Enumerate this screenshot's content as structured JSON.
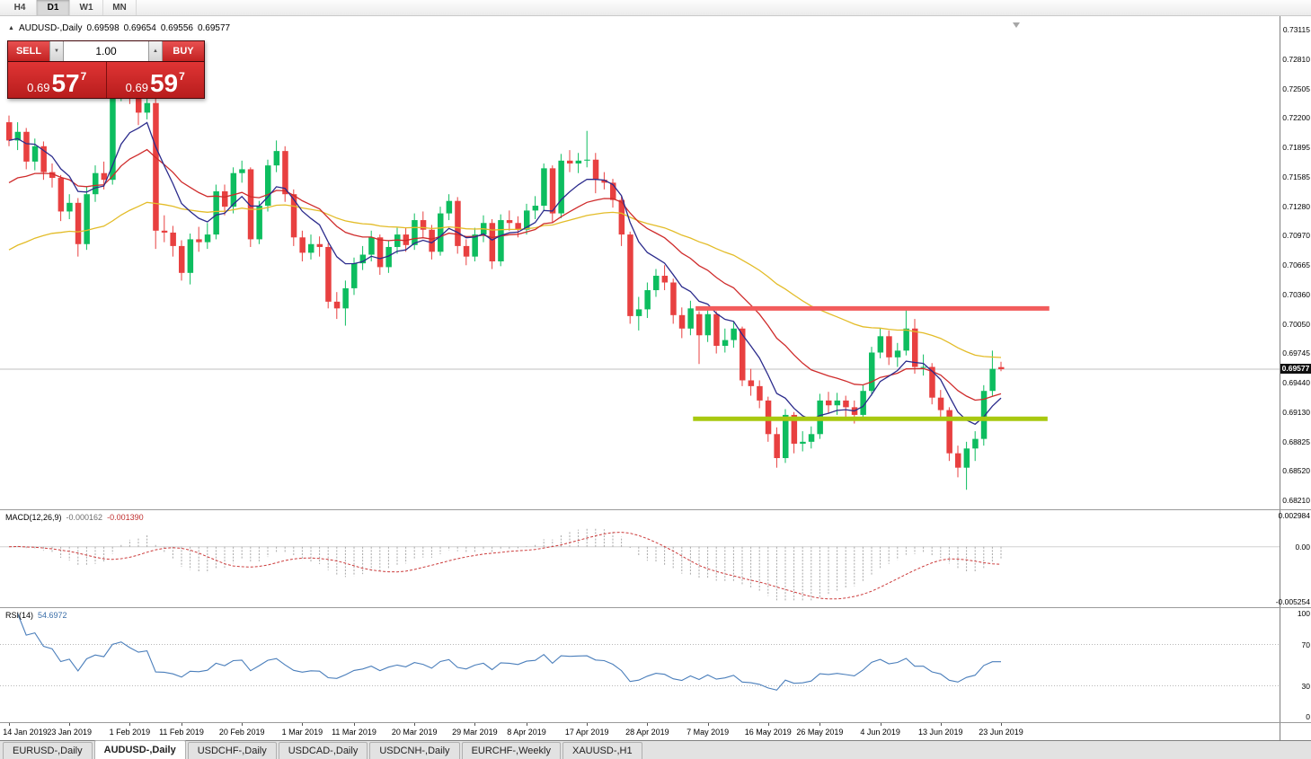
{
  "toolbar": {
    "timeframes": [
      {
        "label": "H4",
        "active": false
      },
      {
        "label": "D1",
        "active": true
      },
      {
        "label": "W1",
        "active": false
      },
      {
        "label": "MN",
        "active": false
      }
    ]
  },
  "window": {
    "symbol_title": "AUDUSD-,Daily",
    "ohlc": {
      "open": "0.69598",
      "high": "0.69654",
      "low": "0.69556",
      "close": "0.69577"
    }
  },
  "icons": {
    "symbol_arrow": "▲",
    "volume_up": "▲",
    "volume_down": "▼"
  },
  "one_click": {
    "sell_label": "SELL",
    "buy_label": "BUY",
    "volume": "1.00",
    "sell_price": {
      "prefix": "0.69",
      "big": "57",
      "sup": "7"
    },
    "buy_price": {
      "prefix": "0.69",
      "big": "59",
      "sup": "7"
    }
  },
  "chart_data": {
    "type": "candlestick",
    "symbol": "AUDUSD",
    "timeframe": "Daily",
    "price_axis": {
      "top_value": 0.73115,
      "bottom_value": 0.6821,
      "labels": [
        "0.73115",
        "0.72810",
        "0.72505",
        "0.72200",
        "0.71895",
        "0.71585",
        "0.71280",
        "0.70970",
        "0.70665",
        "0.70360",
        "0.70050",
        "0.69745",
        "0.69440",
        "0.69130",
        "0.68825",
        "0.68520",
        "0.68210"
      ]
    },
    "current_price": {
      "label": "0.69577",
      "value": 0.69577
    },
    "time_axis": [
      {
        "label": "14 Jan 2019",
        "index": 0
      },
      {
        "label": "23 Jan 2019",
        "index": 7
      },
      {
        "label": "1 Feb 2019",
        "index": 14
      },
      {
        "label": "11 Feb 2019",
        "index": 20
      },
      {
        "label": "20 Feb 2019",
        "index": 27
      },
      {
        "label": "1 Mar 2019",
        "index": 34
      },
      {
        "label": "11 Mar 2019",
        "index": 40
      },
      {
        "label": "20 Mar 2019",
        "index": 47
      },
      {
        "label": "29 Mar 2019",
        "index": 54
      },
      {
        "label": "8 Apr 2019",
        "index": 60
      },
      {
        "label": "17 Apr 2019",
        "index": 67
      },
      {
        "label": "28 Apr 2019",
        "index": 74
      },
      {
        "label": "7 May 2019",
        "index": 81
      },
      {
        "label": "16 May 2019",
        "index": 88
      },
      {
        "label": "26 May 2019",
        "index": 94
      },
      {
        "label": "4 Jun 2019",
        "index": 101
      },
      {
        "label": "13 Jun 2019",
        "index": 108
      },
      {
        "label": "23 Jun 2019",
        "index": 115
      }
    ],
    "candles": [
      [
        0.7215,
        0.7222,
        0.719,
        0.7196
      ],
      [
        0.7196,
        0.7215,
        0.7186,
        0.7205
      ],
      [
        0.7205,
        0.7209,
        0.7166,
        0.7174
      ],
      [
        0.7174,
        0.7198,
        0.7165,
        0.719
      ],
      [
        0.719,
        0.7195,
        0.7155,
        0.7163
      ],
      [
        0.7163,
        0.7172,
        0.7147,
        0.7157
      ],
      [
        0.7157,
        0.716,
        0.7112,
        0.7122
      ],
      [
        0.7122,
        0.714,
        0.7114,
        0.7131
      ],
      [
        0.7131,
        0.7136,
        0.7075,
        0.7088
      ],
      [
        0.7088,
        0.7148,
        0.7082,
        0.714
      ],
      [
        0.714,
        0.717,
        0.7132,
        0.7162
      ],
      [
        0.7162,
        0.7174,
        0.7145,
        0.7155
      ],
      [
        0.7155,
        0.7252,
        0.715,
        0.7245
      ],
      [
        0.7245,
        0.7295,
        0.7237,
        0.727
      ],
      [
        0.727,
        0.7278,
        0.7234,
        0.7246
      ],
      [
        0.7246,
        0.7253,
        0.7212,
        0.7225
      ],
      [
        0.7225,
        0.7248,
        0.7218,
        0.7235
      ],
      [
        0.7235,
        0.724,
        0.7083,
        0.7102
      ],
      [
        0.7102,
        0.7118,
        0.709,
        0.71
      ],
      [
        0.71,
        0.7107,
        0.7075,
        0.7086
      ],
      [
        0.7086,
        0.7092,
        0.705,
        0.7058
      ],
      [
        0.7058,
        0.7099,
        0.7046,
        0.7093
      ],
      [
        0.7093,
        0.7106,
        0.708,
        0.709
      ],
      [
        0.709,
        0.711,
        0.7083,
        0.7098
      ],
      [
        0.7098,
        0.715,
        0.7093,
        0.7143
      ],
      [
        0.7143,
        0.715,
        0.7118,
        0.7127
      ],
      [
        0.7127,
        0.7168,
        0.712,
        0.7162
      ],
      [
        0.7162,
        0.7175,
        0.7152,
        0.7166
      ],
      [
        0.7166,
        0.7168,
        0.7085,
        0.7093
      ],
      [
        0.7093,
        0.7133,
        0.7088,
        0.7128
      ],
      [
        0.7128,
        0.7176,
        0.7122,
        0.717
      ],
      [
        0.717,
        0.7196,
        0.7163,
        0.7185
      ],
      [
        0.7185,
        0.719,
        0.7132,
        0.714
      ],
      [
        0.714,
        0.7145,
        0.7086,
        0.7095
      ],
      [
        0.7095,
        0.7102,
        0.707,
        0.7079
      ],
      [
        0.7079,
        0.7098,
        0.7072,
        0.7088
      ],
      [
        0.7088,
        0.7096,
        0.7075,
        0.7085
      ],
      [
        0.7085,
        0.7089,
        0.7021,
        0.7028
      ],
      [
        0.7028,
        0.7038,
        0.701,
        0.7021
      ],
      [
        0.7021,
        0.705,
        0.7003,
        0.7042
      ],
      [
        0.7042,
        0.7074,
        0.7035,
        0.7068
      ],
      [
        0.7068,
        0.7086,
        0.7061,
        0.7077
      ],
      [
        0.7077,
        0.7102,
        0.707,
        0.7095
      ],
      [
        0.7095,
        0.7098,
        0.7056,
        0.7064
      ],
      [
        0.7064,
        0.7092,
        0.7058,
        0.7085
      ],
      [
        0.7085,
        0.7105,
        0.7078,
        0.7098
      ],
      [
        0.7098,
        0.7105,
        0.708,
        0.7087
      ],
      [
        0.7087,
        0.712,
        0.7082,
        0.7113
      ],
      [
        0.7113,
        0.7122,
        0.7095,
        0.7103
      ],
      [
        0.7103,
        0.7108,
        0.7072,
        0.708
      ],
      [
        0.708,
        0.7127,
        0.7076,
        0.712
      ],
      [
        0.712,
        0.714,
        0.7113,
        0.7133
      ],
      [
        0.7133,
        0.7137,
        0.7078,
        0.7086
      ],
      [
        0.7086,
        0.7093,
        0.7066,
        0.7075
      ],
      [
        0.7075,
        0.7105,
        0.707,
        0.7098
      ],
      [
        0.7098,
        0.7118,
        0.709,
        0.711
      ],
      [
        0.711,
        0.7114,
        0.7062,
        0.707
      ],
      [
        0.707,
        0.7119,
        0.7065,
        0.7113
      ],
      [
        0.7113,
        0.7123,
        0.7102,
        0.711
      ],
      [
        0.711,
        0.7117,
        0.7095,
        0.7103
      ],
      [
        0.7103,
        0.713,
        0.7098,
        0.7123
      ],
      [
        0.7123,
        0.7138,
        0.7114,
        0.7128
      ],
      [
        0.7128,
        0.7172,
        0.7123,
        0.7167
      ],
      [
        0.7167,
        0.717,
        0.711,
        0.712
      ],
      [
        0.712,
        0.7182,
        0.7115,
        0.7175
      ],
      [
        0.7175,
        0.7186,
        0.7163,
        0.7172
      ],
      [
        0.7172,
        0.7183,
        0.7162,
        0.7175
      ],
      [
        0.7175,
        0.7206,
        0.7168,
        0.7176
      ],
      [
        0.7176,
        0.7183,
        0.7141,
        0.7155
      ],
      [
        0.7155,
        0.7163,
        0.7145,
        0.7152
      ],
      [
        0.7152,
        0.7156,
        0.7126,
        0.7134
      ],
      [
        0.7134,
        0.7138,
        0.7086,
        0.7098
      ],
      [
        0.7098,
        0.7101,
        0.7005,
        0.7013
      ],
      [
        0.7013,
        0.7033,
        0.6998,
        0.702
      ],
      [
        0.702,
        0.7048,
        0.7011,
        0.704
      ],
      [
        0.704,
        0.7062,
        0.7033,
        0.7055
      ],
      [
        0.7055,
        0.7066,
        0.704,
        0.7048
      ],
      [
        0.7048,
        0.7052,
        0.7005,
        0.7014
      ],
      [
        0.7014,
        0.7022,
        0.699,
        0.7
      ],
      [
        0.7,
        0.7029,
        0.6993,
        0.7021
      ],
      [
        0.7015,
        0.7018,
        0.6963,
        0.6993
      ],
      [
        0.6993,
        0.7022,
        0.6986,
        0.7015
      ],
      [
        0.7015,
        0.7018,
        0.6974,
        0.6982
      ],
      [
        0.6982,
        0.7,
        0.6975,
        0.6988
      ],
      [
        0.6988,
        0.7007,
        0.698,
        0.7
      ],
      [
        0.7,
        0.7002,
        0.694,
        0.6946
      ],
      [
        0.6946,
        0.6958,
        0.693,
        0.694
      ],
      [
        0.694,
        0.6946,
        0.6917,
        0.6925
      ],
      [
        0.6925,
        0.6929,
        0.6882,
        0.689
      ],
      [
        0.689,
        0.6897,
        0.6855,
        0.6865
      ],
      [
        0.6865,
        0.6916,
        0.686,
        0.691
      ],
      [
        0.691,
        0.6913,
        0.687,
        0.688
      ],
      [
        0.688,
        0.6893,
        0.6872,
        0.6882
      ],
      [
        0.6882,
        0.6898,
        0.6875,
        0.689
      ],
      [
        0.689,
        0.6932,
        0.6885,
        0.6925
      ],
      [
        0.6925,
        0.6934,
        0.6912,
        0.692
      ],
      [
        0.692,
        0.6933,
        0.691,
        0.6925
      ],
      [
        0.6925,
        0.693,
        0.6908,
        0.6918
      ],
      [
        0.6918,
        0.6925,
        0.6901,
        0.691
      ],
      [
        0.691,
        0.6941,
        0.6905,
        0.6935
      ],
      [
        0.6935,
        0.6981,
        0.693,
        0.6975
      ],
      [
        0.6975,
        0.7,
        0.6969,
        0.6992
      ],
      [
        0.6992,
        0.6998,
        0.6962,
        0.697
      ],
      [
        0.697,
        0.6985,
        0.696,
        0.6977
      ],
      [
        0.6977,
        0.7022,
        0.6972,
        0.7
      ],
      [
        0.7,
        0.701,
        0.6953,
        0.696
      ],
      [
        0.696,
        0.6973,
        0.6951,
        0.696
      ],
      [
        0.696,
        0.6964,
        0.6921,
        0.6928
      ],
      [
        0.6928,
        0.6936,
        0.6908,
        0.6915
      ],
      [
        0.6915,
        0.6918,
        0.6862,
        0.687
      ],
      [
        0.687,
        0.6878,
        0.6845,
        0.6855
      ],
      [
        0.6855,
        0.6882,
        0.6832,
        0.6875
      ],
      [
        0.6875,
        0.6893,
        0.6862,
        0.6885
      ],
      [
        0.6885,
        0.6941,
        0.6878,
        0.6935
      ],
      [
        0.6935,
        0.6977,
        0.693,
        0.6958
      ],
      [
        0.69598,
        0.69654,
        0.69556,
        0.69577
      ]
    ],
    "moving_averages": [
      {
        "name": "ma-slow",
        "period": 50,
        "color": "#e3bc28"
      },
      {
        "name": "ma-medium",
        "period": 20,
        "color": "#cf2b2b"
      },
      {
        "name": "ma-fast",
        "period": 8,
        "color": "#2b2b8c"
      }
    ],
    "horizontal_lines": [
      {
        "name": "resistance-line",
        "price": 0.7021,
        "color": "#f25c5c",
        "width": 5,
        "from_index": 79.6,
        "to_index": 120.6
      },
      {
        "name": "support-line",
        "price": 0.6906,
        "color": "#a8c80f",
        "width": 5,
        "from_index": 79.3,
        "to_index": 120.4
      }
    ],
    "colors": {
      "bull": "#0dbd5f",
      "bear": "#e84040",
      "background": "#ffffff",
      "bid_line": "#bfbfbf"
    },
    "macd": {
      "label": "MACD(12,26,9)",
      "value_main": "-0.000162",
      "value_signal": "-0.001390",
      "fast": 12,
      "slow": 26,
      "signal_period": 9,
      "scale": {
        "max": 0.002984,
        "min": -0.005254,
        "labels": [
          "0.002984",
          "0.00",
          "-0.005254"
        ]
      },
      "histogram_color": "#a8a8a8",
      "signal_color": "#cc3b3b"
    },
    "rsi": {
      "label": "RSI(14)",
      "value": "54.6972",
      "period": 14,
      "scale_labels": [
        {
          "label": "100",
          "value": 100
        },
        {
          "label": "70",
          "value": 70
        },
        {
          "label": "30",
          "value": 30
        },
        {
          "label": "0",
          "value": 0
        }
      ],
      "levels": [
        70,
        30
      ],
      "line_color": "#4a7ebb"
    }
  },
  "tabs": [
    {
      "label": "EURUSD-,Daily",
      "active": false
    },
    {
      "label": "AUDUSD-,Daily",
      "active": true
    },
    {
      "label": "USDCHF-,Daily",
      "active": false
    },
    {
      "label": "USDCAD-,Daily",
      "active": false
    },
    {
      "label": "USDCNH-,Daily",
      "active": false
    },
    {
      "label": "EURCHF-,Weekly",
      "active": false
    },
    {
      "label": "XAUUSD-,H1",
      "active": false
    }
  ]
}
